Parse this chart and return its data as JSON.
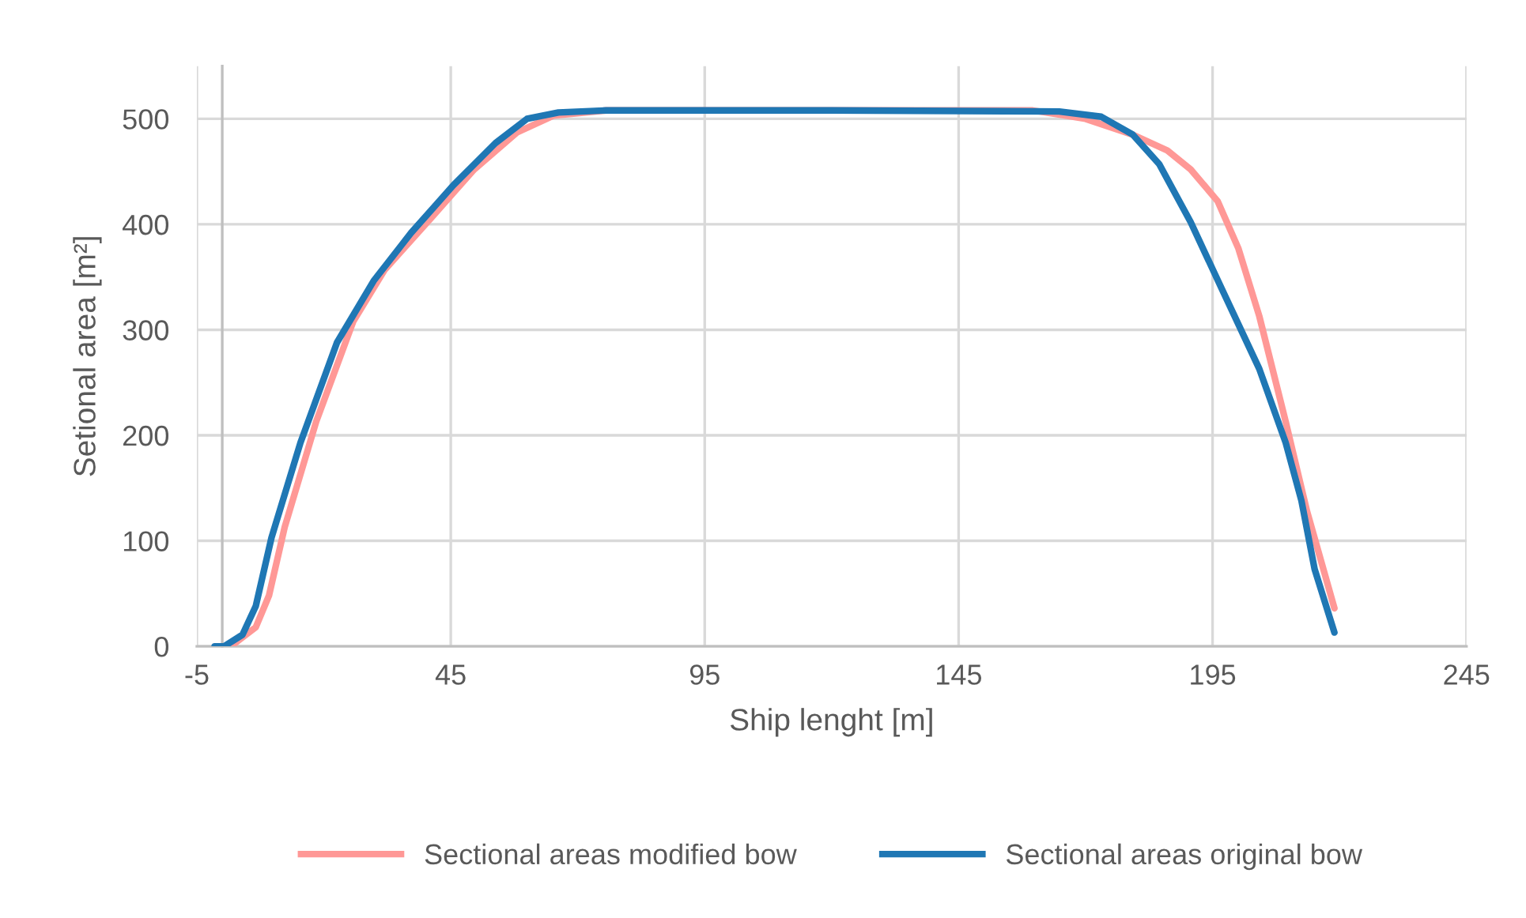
{
  "chart_data": {
    "type": "line",
    "xlabel": "Ship lenght [m]",
    "ylabel": "Setional area [m²]",
    "xlim": [
      -5,
      245
    ],
    "xticks": [
      -5,
      45,
      95,
      145,
      195,
      245
    ],
    "ylim": [
      0,
      550
    ],
    "yticks": [
      0,
      100,
      200,
      300,
      400,
      500
    ],
    "grid": true,
    "legend": "bottom",
    "marker": "none",
    "line_style": "solid",
    "series": [
      {
        "name": "Sectional areas modified bow",
        "color": "#ff9896",
        "x": [
          1.7,
          6.6,
          9.2,
          12.3,
          18.5,
          25.8,
          32.0,
          41.3,
          49.6,
          58.0,
          65.2,
          75.6,
          159.6,
          170.0,
          179.3,
          186.1,
          190.7,
          196.0,
          200.1,
          204.2,
          209.4,
          213.6,
          219.0
        ],
        "values": [
          0,
          18,
          48,
          113,
          213,
          308,
          357,
          407,
          452,
          487,
          503,
          508,
          508,
          500,
          485,
          470,
          452,
          422,
          377,
          313,
          213,
          128,
          36
        ]
      },
      {
        "name": "Sectional areas original bow",
        "color": "#1f77b4",
        "x": [
          -1.5,
          0.4,
          4.0,
          6.6,
          9.7,
          15.4,
          22.6,
          29.9,
          37.2,
          45.5,
          53.8,
          60,
          66.2,
          75.6,
          120,
          164.8,
          173.1,
          179.3,
          184.5,
          190.7,
          196.9,
          204.2,
          209.4,
          212.5,
          215.1,
          219.0
        ],
        "values": [
          0,
          0,
          11,
          38,
          103,
          193,
          288,
          347,
          392,
          437,
          477,
          500,
          506,
          508,
          508,
          507,
          502,
          485,
          457,
          402,
          338,
          263,
          193,
          138,
          73,
          13
        ]
      }
    ]
  }
}
